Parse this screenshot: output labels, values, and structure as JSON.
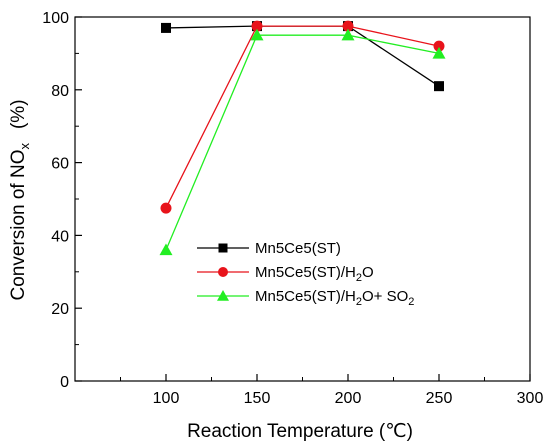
{
  "chart_data": {
    "type": "line",
    "xlabel": "Reaction Temperature (℃)",
    "ylabel": "Conversion of NO",
    "ylabel_subscript": "x",
    "ylabel_unit": "(%)",
    "xlim": [
      50,
      300
    ],
    "ylim": [
      0,
      100
    ],
    "x_ticks": [
      100,
      150,
      200,
      250,
      300
    ],
    "y_ticks": [
      0,
      20,
      40,
      60,
      80,
      100
    ],
    "grid": false,
    "legend_position": "center",
    "x": [
      100,
      150,
      200,
      250
    ],
    "series": [
      {
        "name": "Mn5Ce5(ST)",
        "name_parts": [
          "Mn5Ce5(ST)"
        ],
        "marker": "square",
        "color": "#000000",
        "values": [
          97,
          97.5,
          97.5,
          81
        ]
      },
      {
        "name": "Mn5Ce5(ST)/H2O",
        "name_parts": [
          "Mn5Ce5(ST)/H",
          "2",
          "O"
        ],
        "marker": "circle",
        "color": "#e8131b",
        "values": [
          47.5,
          97.5,
          97.5,
          92
        ]
      },
      {
        "name": "Mn5Ce5(ST)/H2O+ SO2",
        "name_parts": [
          "Mn5Ce5(ST)/H",
          "2",
          "O+ SO",
          "2"
        ],
        "marker": "triangle",
        "color": "#22ee22",
        "values": [
          36,
          95,
          95,
          90
        ]
      }
    ]
  }
}
